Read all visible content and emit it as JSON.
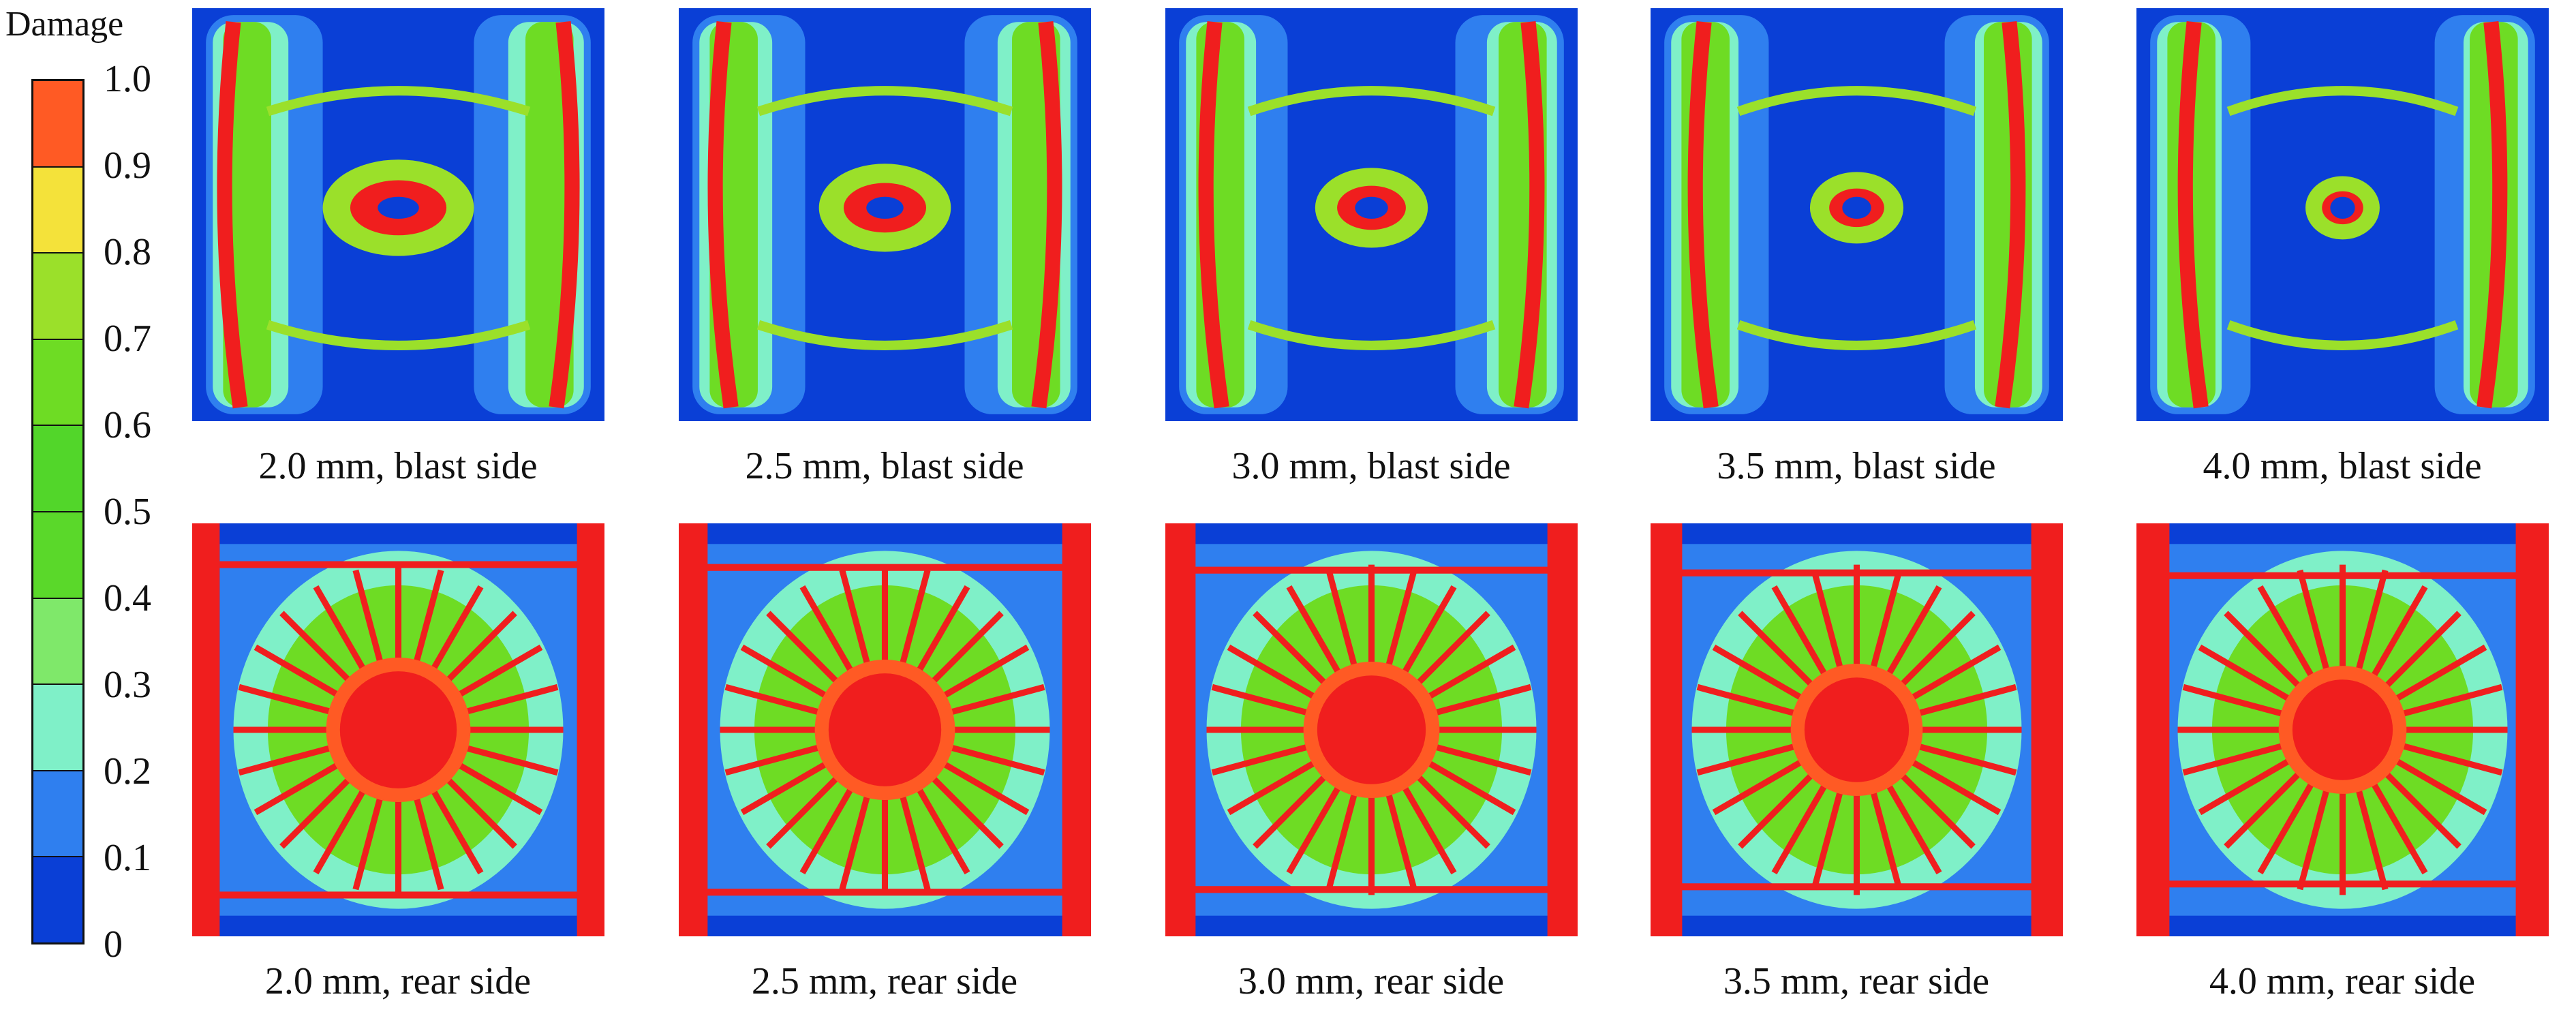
{
  "legend": {
    "title": "Damage",
    "ticks": [
      "0",
      "0.1",
      "0.2",
      "0.3",
      "0.4",
      "0.5",
      "0.6",
      "0.7",
      "0.8",
      "0.9",
      "1.0"
    ],
    "colors": [
      "#0a3fd6",
      "#2f7fef",
      "#7ff0c8",
      "#7fe86a",
      "#5ad82a",
      "#52d62a",
      "#6edc24",
      "#9be02a",
      "#f4e23a",
      "#ff5a24",
      "#f01e1e"
    ]
  },
  "panels": [
    {
      "caption": "2.0 mm, blast side",
      "side": "blast"
    },
    {
      "caption": "2.5 mm, blast side",
      "side": "blast"
    },
    {
      "caption": "3.0 mm, blast side",
      "side": "blast"
    },
    {
      "caption": "3.5 mm, blast side",
      "side": "blast"
    },
    {
      "caption": "4.0 mm, blast side",
      "side": "blast"
    },
    {
      "caption": "2.0 mm, rear side",
      "side": "rear"
    },
    {
      "caption": "2.5 mm, rear side",
      "side": "rear"
    },
    {
      "caption": "3.0 mm, rear side",
      "side": "rear"
    },
    {
      "caption": "3.5 mm, rear side",
      "side": "rear"
    },
    {
      "caption": "4.0 mm, rear side",
      "side": "rear"
    }
  ]
}
